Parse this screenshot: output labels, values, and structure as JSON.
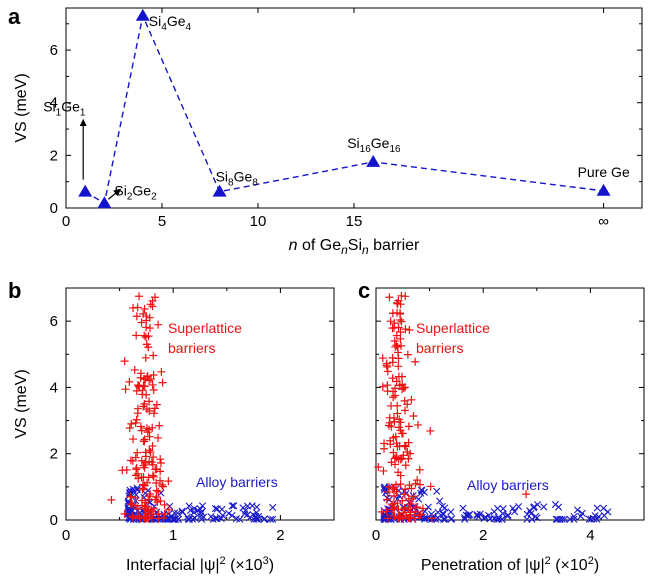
{
  "chart_data": [
    {
      "panel": "a",
      "type": "line",
      "xlabel_parts": [
        "n",
        " of Ge",
        "n",
        "Si",
        "n",
        " barrier"
      ],
      "ylabel": "VS (meV)",
      "xticks": [
        {
          "v": 0,
          "t": "0"
        },
        {
          "v": 5,
          "t": "5"
        },
        {
          "v": 10,
          "t": "10"
        },
        {
          "v": 15,
          "t": "15"
        },
        {
          "v": 28,
          "t": "∞"
        }
      ],
      "yticks": [
        0,
        2,
        4,
        6
      ],
      "xlim": [
        0,
        30
      ],
      "ylim": [
        0,
        7.6
      ],
      "series": [
        {
          "color": "#1414cc",
          "marker": "triangle",
          "line": "dashed",
          "points": [
            {
              "x": 1,
              "y": 0.62
            },
            {
              "x": 2,
              "y": 0.18
            },
            {
              "x": 4,
              "y": 7.3
            },
            {
              "x": 8,
              "y": 0.62
            },
            {
              "x": 16,
              "y": 1.75
            },
            {
              "x": 28,
              "y": 0.65
            }
          ]
        }
      ],
      "point_labels": [
        {
          "main1": "Si",
          "sub1": "1",
          "main2": "Ge",
          "sub2": "1"
        },
        {
          "main1": "Si",
          "sub1": "2",
          "main2": "Ge",
          "sub2": "2"
        },
        {
          "main1": "Si",
          "sub1": "4",
          "main2": "Ge",
          "sub2": "4"
        },
        {
          "main1": "Si",
          "sub1": "8",
          "main2": "Ge",
          "sub2": "8"
        },
        {
          "main1": "Si",
          "sub1": "16",
          "main2": "Ge",
          "sub2": "16"
        },
        {
          "text": "Pure Ge"
        }
      ]
    },
    {
      "panel": "b",
      "type": "scatter",
      "xlabel_main": "Interfacial |ψ|",
      "xlabel_sup": "2",
      "xlabel_rest": " (×10",
      "xlabel_sup2": "3",
      "xlabel_end": ")",
      "ylabel": "VS (meV)",
      "xticks": [
        0,
        1,
        2
      ],
      "yticks": [
        0,
        2,
        4,
        6
      ],
      "xlim": [
        0,
        2.5
      ],
      "ylim": [
        0,
        7
      ],
      "series": [
        {
          "name_line1": "Superlattice",
          "name_line2": "barriers",
          "color": "#ee1111",
          "marker": "plus"
        },
        {
          "name_line1": "Alloy barriers",
          "color": "#1a1acc",
          "marker": "x"
        }
      ]
    },
    {
      "panel": "c",
      "type": "scatter",
      "xlabel_main": "Penetration of |ψ|",
      "xlabel_sup": "2",
      "xlabel_rest": " (×10",
      "xlabel_sup2": "2",
      "xlabel_end": ")",
      "xticks": [
        0,
        2,
        4
      ],
      "yticks": [
        0,
        2,
        4,
        6
      ],
      "xlim": [
        0,
        5
      ],
      "ylim": [
        0,
        7
      ],
      "series": [
        {
          "name_line1": "Superlattice",
          "name_line2": "barriers",
          "color": "#ee1111",
          "marker": "plus"
        },
        {
          "name_line1": "Alloy barriers",
          "color": "#1a1acc",
          "marker": "x"
        }
      ]
    }
  ]
}
